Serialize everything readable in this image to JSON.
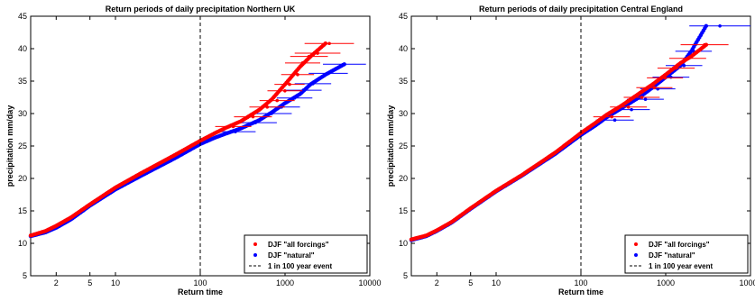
{
  "colors": {
    "all_forcings": "#ff0000",
    "natural": "#0000ff",
    "event_line": "#000000",
    "axes": "#000000",
    "background": "#ffffff"
  },
  "chart_data": [
    {
      "type": "scatter",
      "title": "Return periods of daily precipitation Northern UK",
      "xlabel": "Return time",
      "ylabel": "precipitation mm/day",
      "xscale": "log",
      "xlim": [
        1,
        10000
      ],
      "ylim": [
        5,
        45
      ],
      "x_ticks": [
        2,
        5,
        10,
        100,
        1000,
        10000
      ],
      "x_tick_labels": [
        "2",
        "5",
        "10",
        "100",
        "1000",
        "10000"
      ],
      "y_ticks": [
        5,
        10,
        15,
        20,
        25,
        30,
        35,
        40,
        45
      ],
      "y_tick_labels": [
        "5",
        "10",
        "15",
        "20",
        "25",
        "30",
        "35",
        "40",
        "45"
      ],
      "vline": {
        "x": 100,
        "style": "dashed",
        "label": "1 in 100 year event"
      },
      "legend_position": "bottom-right",
      "series": [
        {
          "name": "DJF \"all forcings\"",
          "marker": "dot",
          "points": [
            [
              1.0,
              11.2
            ],
            [
              1.5,
              11.9
            ],
            [
              2,
              12.7
            ],
            [
              3,
              14.0
            ],
            [
              5,
              16.0
            ],
            [
              10,
              18.6
            ],
            [
              20,
              20.8
            ],
            [
              50,
              23.6
            ],
            [
              100,
              25.8
            ],
            [
              150,
              27.0
            ],
            [
              200,
              27.8
            ],
            [
              300,
              28.8
            ],
            [
              500,
              30.6
            ],
            [
              700,
              32.2
            ],
            [
              1000,
              34.5
            ],
            [
              1500,
              37.2
            ],
            [
              2000,
              38.8
            ],
            [
              3000,
              40.8
            ]
          ],
          "error_bars_x": [
            {
              "y": 28.0,
              "xmin": 150,
              "xmax": 400
            },
            {
              "y": 29.5,
              "xmin": 250,
              "xmax": 700
            },
            {
              "y": 31.0,
              "xmin": 380,
              "xmax": 1000
            },
            {
              "y": 32.0,
              "xmin": 500,
              "xmax": 1300
            },
            {
              "y": 33.5,
              "xmin": 620,
              "xmax": 1600
            },
            {
              "y": 34.5,
              "xmin": 750,
              "xmax": 1700
            },
            {
              "y": 36.0,
              "xmin": 900,
              "xmax": 2200
            },
            {
              "y": 37.8,
              "xmin": 1000,
              "xmax": 2600
            },
            {
              "y": 38.8,
              "xmin": 1150,
              "xmax": 3200
            },
            {
              "y": 39.3,
              "xmin": 1300,
              "xmax": 4500
            },
            {
              "y": 40.8,
              "xmin": 1700,
              "xmax": 6500
            }
          ]
        },
        {
          "name": "DJF \"natural\"",
          "marker": "dot",
          "points": [
            [
              1.0,
              11.1
            ],
            [
              1.5,
              11.7
            ],
            [
              2,
              12.4
            ],
            [
              3,
              13.7
            ],
            [
              5,
              15.8
            ],
            [
              10,
              18.3
            ],
            [
              20,
              20.4
            ],
            [
              50,
              23.1
            ],
            [
              100,
              25.3
            ],
            [
              150,
              26.3
            ],
            [
              200,
              26.9
            ],
            [
              300,
              27.7
            ],
            [
              500,
              29.0
            ],
            [
              700,
              30.2
            ],
            [
              1000,
              31.6
            ],
            [
              1500,
              33.0
            ],
            [
              2000,
              34.5
            ],
            [
              3000,
              36.0
            ],
            [
              5000,
              37.6
            ]
          ],
          "error_bars_x": [
            {
              "y": 27.2,
              "xmin": 150,
              "xmax": 450
            },
            {
              "y": 28.6,
              "xmin": 250,
              "xmax": 800
            },
            {
              "y": 30.0,
              "xmin": 400,
              "xmax": 1200
            },
            {
              "y": 31.0,
              "xmin": 550,
              "xmax": 1500
            },
            {
              "y": 32.4,
              "xmin": 800,
              "xmax": 2100
            },
            {
              "y": 33.6,
              "xmin": 1000,
              "xmax": 2700
            },
            {
              "y": 34.6,
              "xmin": 1300,
              "xmax": 3500
            },
            {
              "y": 36.2,
              "xmin": 1900,
              "xmax": 5500
            },
            {
              "y": 37.6,
              "xmin": 2800,
              "xmax": 9000
            }
          ]
        }
      ]
    },
    {
      "type": "scatter",
      "title": "Return periods of daily precipitation Central England",
      "xlabel": "Return time",
      "ylabel": "precipitation mm/day",
      "xscale": "log",
      "xlim": [
        1,
        10000
      ],
      "ylim": [
        5,
        45
      ],
      "x_ticks": [
        2,
        5,
        10,
        100,
        1000,
        10000
      ],
      "x_tick_labels": [
        "2",
        "5",
        "10",
        "100",
        "1000",
        "10000"
      ],
      "y_ticks": [
        5,
        10,
        15,
        20,
        25,
        30,
        35,
        40,
        45
      ],
      "y_tick_labels": [
        "5",
        "10",
        "15",
        "20",
        "25",
        "30",
        "35",
        "40",
        "45"
      ],
      "vline": {
        "x": 100,
        "style": "dashed",
        "label": "1 in 100 year event"
      },
      "legend_position": "bottom-right",
      "series": [
        {
          "name": "DJF \"all forcings\"",
          "marker": "dot",
          "points": [
            [
              1.0,
              10.6
            ],
            [
              1.5,
              11.2
            ],
            [
              2,
              12.0
            ],
            [
              3,
              13.3
            ],
            [
              5,
              15.4
            ],
            [
              10,
              18.1
            ],
            [
              20,
              20.5
            ],
            [
              50,
              24.0
            ],
            [
              100,
              27.0
            ],
            [
              150,
              28.6
            ],
            [
              200,
              29.8
            ],
            [
              300,
              31.2
            ],
            [
              500,
              33.2
            ],
            [
              700,
              34.5
            ],
            [
              1000,
              36.0
            ],
            [
              1500,
              37.8
            ],
            [
              2000,
              38.8
            ],
            [
              3000,
              40.6
            ]
          ],
          "error_bars_x": [
            {
              "y": 29.5,
              "xmin": 140,
              "xmax": 380
            },
            {
              "y": 31.0,
              "xmin": 220,
              "xmax": 600
            },
            {
              "y": 32.5,
              "xmin": 320,
              "xmax": 850
            },
            {
              "y": 34.0,
              "xmin": 450,
              "xmax": 1200
            },
            {
              "y": 35.5,
              "xmin": 600,
              "xmax": 1600
            },
            {
              "y": 37.0,
              "xmin": 800,
              "xmax": 2200
            },
            {
              "y": 38.5,
              "xmin": 1100,
              "xmax": 3000
            },
            {
              "y": 40.6,
              "xmin": 1500,
              "xmax": 5500
            }
          ]
        },
        {
          "name": "DJF \"natural\"",
          "marker": "dot",
          "points": [
            [
              1.0,
              10.5
            ],
            [
              1.5,
              11.1
            ],
            [
              2,
              11.9
            ],
            [
              3,
              13.2
            ],
            [
              5,
              15.3
            ],
            [
              10,
              18.0
            ],
            [
              20,
              20.4
            ],
            [
              50,
              23.8
            ],
            [
              100,
              26.7
            ],
            [
              150,
              28.2
            ],
            [
              200,
              29.4
            ],
            [
              300,
              30.8
            ],
            [
              500,
              32.6
            ],
            [
              700,
              34.0
            ],
            [
              1000,
              35.6
            ],
            [
              1500,
              37.4
            ],
            [
              2000,
              39.6
            ],
            [
              3000,
              43.5
            ]
          ],
          "error_bars_x": [
            {
              "y": 29.0,
              "xmin": 150,
              "xmax": 420
            },
            {
              "y": 30.6,
              "xmin": 240,
              "xmax": 650
            },
            {
              "y": 32.2,
              "xmin": 350,
              "xmax": 950
            },
            {
              "y": 33.8,
              "xmin": 500,
              "xmax": 1300
            },
            {
              "y": 35.6,
              "xmin": 700,
              "xmax": 1900
            },
            {
              "y": 37.4,
              "xmin": 1000,
              "xmax": 2700
            },
            {
              "y": 39.6,
              "xmin": 1300,
              "xmax": 3500
            },
            {
              "y": 43.5,
              "xmin": 1900,
              "xmax": 10000
            }
          ]
        }
      ]
    }
  ]
}
